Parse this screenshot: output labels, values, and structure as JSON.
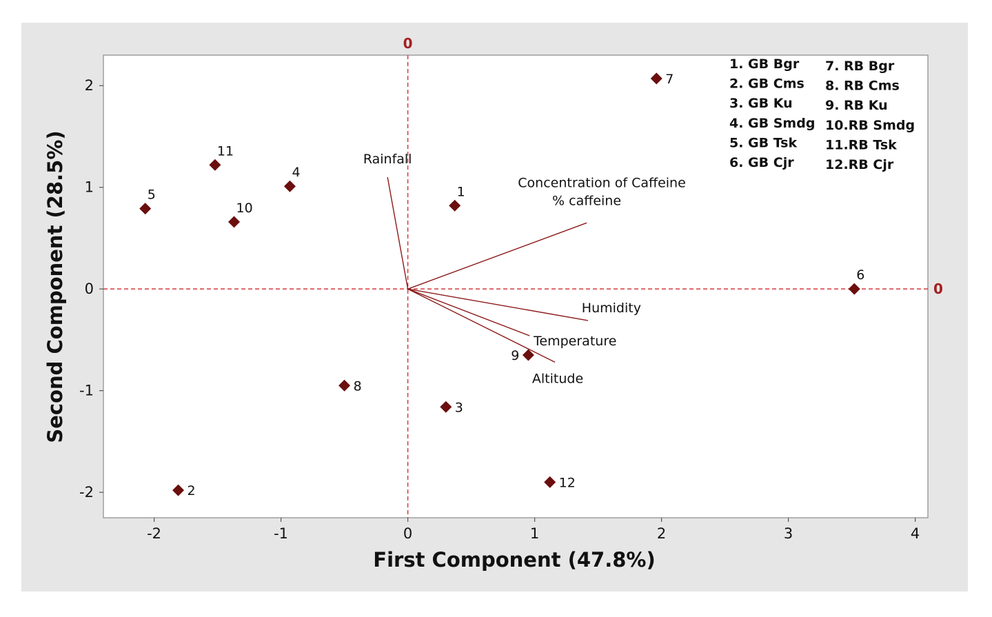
{
  "chart_data": {
    "type": "scatter",
    "subtype": "biplot",
    "title": "",
    "xlabel": "First Component (47.8%)",
    "ylabel": "Second Component (28.5%)",
    "xlim": [
      -2.4,
      4.1
    ],
    "ylim": [
      -2.25,
      2.3
    ],
    "xticks": [
      -2,
      -1,
      0,
      1,
      2,
      3,
      4
    ],
    "xtick_labels": [
      "-2",
      "-1",
      "0",
      "1",
      "2",
      "3",
      "4"
    ],
    "yticks": [
      -2,
      -1,
      0,
      1,
      2
    ],
    "ytick_labels": [
      "-2",
      "-1",
      "0",
      "1",
      "2"
    ],
    "reference_lines": {
      "x": 0,
      "y": 0,
      "label": "0",
      "style": "dashed"
    },
    "grid": false,
    "colors": {
      "marker": "#6b0e0e",
      "vector": "#8b1a1a",
      "reference": "#d43a3a",
      "zero_label": "#a32020",
      "background": "#e6e6e6",
      "plot_bg": "#ffffff"
    },
    "points": [
      {
        "label": "1",
        "x": 0.37,
        "y": 0.82
      },
      {
        "label": "2",
        "x": -1.81,
        "y": -1.98
      },
      {
        "label": "3",
        "x": 0.3,
        "y": -1.16
      },
      {
        "label": "4",
        "x": -0.93,
        "y": 1.01
      },
      {
        "label": "5",
        "x": -2.07,
        "y": 0.79
      },
      {
        "label": "6",
        "x": 3.52,
        "y": 0.0
      },
      {
        "label": "7",
        "x": 1.96,
        "y": 2.07
      },
      {
        "label": "8",
        "x": -0.5,
        "y": -0.95
      },
      {
        "label": "9",
        "x": 0.95,
        "y": -0.65
      },
      {
        "label": "10",
        "x": -1.37,
        "y": 0.66
      },
      {
        "label": "11",
        "x": -1.52,
        "y": 1.22
      },
      {
        "label": "12",
        "x": 1.12,
        "y": -1.9
      }
    ],
    "vectors": [
      {
        "name": "Rainfall",
        "x": -0.16,
        "y": 1.1
      },
      {
        "name": "Concentration of Caffeine % caffeine",
        "label_lines": [
          "Concentration of Caffeine",
          "% caffeine"
        ],
        "x": 1.41,
        "y": 0.65
      },
      {
        "name": "Humidity",
        "x": 1.42,
        "y": -0.31
      },
      {
        "name": "Temperature",
        "x": 0.96,
        "y": -0.46
      },
      {
        "name": "Altitude",
        "x": 1.16,
        "y": -0.72
      }
    ],
    "legend": {
      "placement": "top-right",
      "columns": [
        [
          "1. GB Bgr",
          "2. GB Cms",
          "3. GB Ku",
          "4. GB Smdg",
          "5. GB Tsk",
          "6. GB Cjr"
        ],
        [
          "7. RB Bgr",
          "8. RB Cms",
          "9. RB Ku",
          "10.RB Smdg",
          "11.RB Tsk",
          "12.RB Cjr"
        ]
      ]
    }
  }
}
